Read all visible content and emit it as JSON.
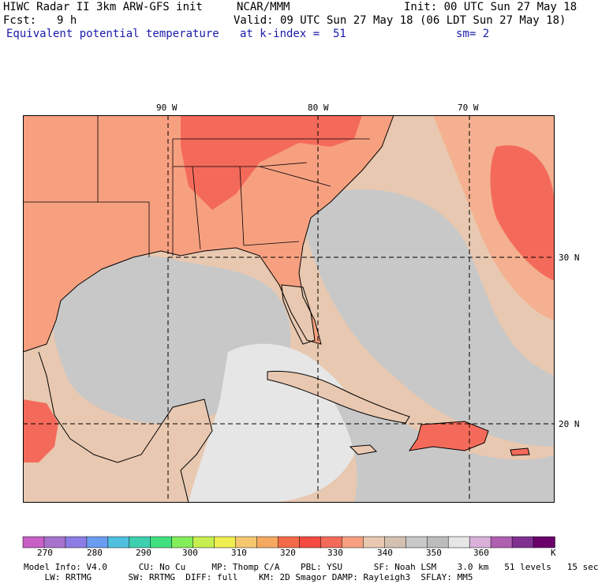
{
  "header": {
    "title": "HIWC Radar II 3km ARW-GFS init",
    "org": "NCAR/MMM",
    "init": "Init: 00 UTC Sun 27 May 18",
    "fcst_label": "Fcst:",
    "fcst_value": "9 h",
    "valid": "Valid: 09 UTC Sun 27 May 18 (06 LDT Sun 27 May 18)",
    "field": "Equivalent potential temperature",
    "level": "at k-index =  51",
    "smoothing": "sm= 2"
  },
  "map": {
    "lon_labels": [
      "90 W",
      "80 W",
      "70 W"
    ],
    "lat_labels": [
      "30 N",
      "20 N"
    ],
    "colors": {
      "land_warm": "#f7a080",
      "land_hot": "#f46a5a",
      "ocean_cool": "#c8c8c8",
      "ocean_mid": "#e8c8b0",
      "caribbean_cold": "#e6e6e6",
      "atlantic_warm": "#f4b090"
    }
  },
  "colorbar": {
    "colors": [
      "#c65fc6",
      "#a772cc",
      "#8c7de6",
      "#6a9cf0",
      "#4fc0e0",
      "#3ecfaf",
      "#40e07e",
      "#83ee5a",
      "#c6ee50",
      "#eeee50",
      "#f5c870",
      "#f5a860",
      "#f46a48",
      "#f44a40",
      "#f46a5a",
      "#f7a080",
      "#e8c8b0",
      "#d4c0b0",
      "#c8c8c8",
      "#bcbcbc",
      "#e6e6e6",
      "#d8b0d8",
      "#b060b0",
      "#803090",
      "#6a006a"
    ],
    "labels": [
      "270",
      "280",
      "290",
      "300",
      "310",
      "320",
      "330",
      "340",
      "350",
      "360",
      "K"
    ]
  },
  "footer": {
    "line1": "Model Info: V4.0      CU: No Cu     MP: Thomp C/A    PBL: YSU      SF: Noah LSM    3.0 km   51 levels   15 sec",
    "line2": "    LW: RRTMG       SW: RRTMG  DIFF: full    KM: 2D Smagor DAMP: Rayleigh3  SFLAY: MM5"
  }
}
